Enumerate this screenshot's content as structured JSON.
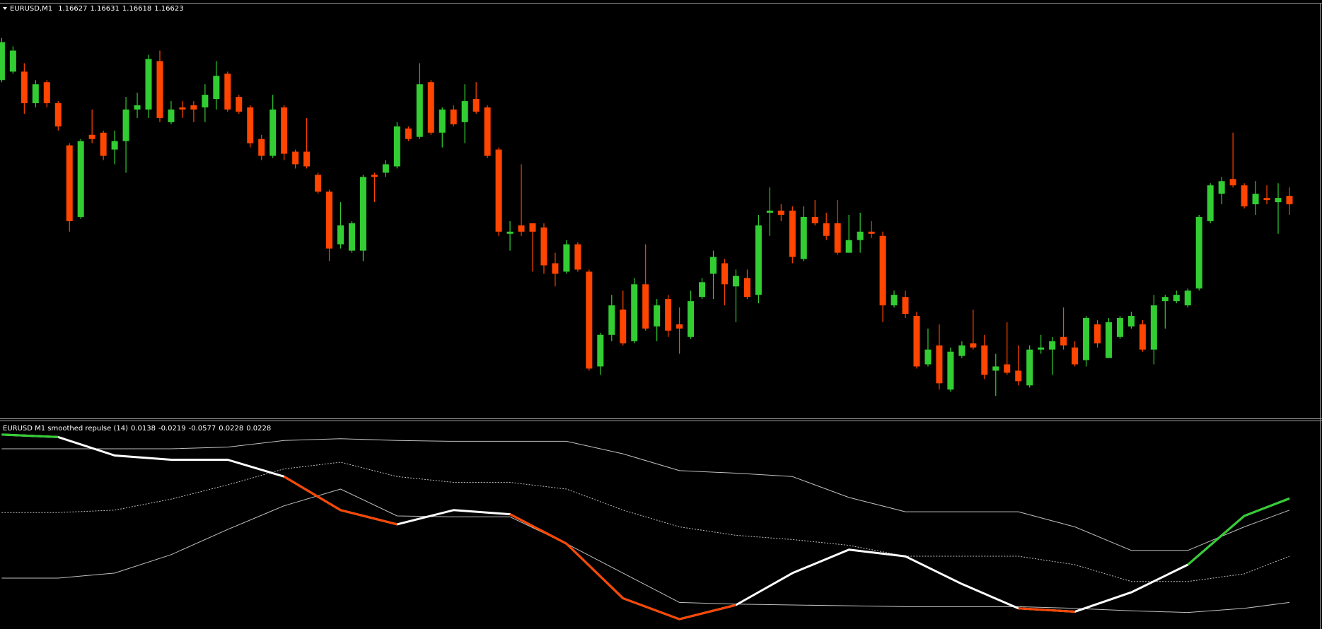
{
  "chart_data": [
    {
      "type": "candlestick",
      "title": "EURUSD,M1",
      "up_color": "#32cd32",
      "down_color": "#ff4500",
      "ylim": [
        1.16522,
        1.16718
      ],
      "open": [
        1.16682,
        1.16686,
        1.16686,
        1.16671,
        1.16681,
        1.16671,
        1.16651,
        1.16617,
        1.16656,
        1.16657,
        1.16649,
        1.16653,
        1.16668,
        1.16668,
        1.16691,
        1.16662,
        1.16669,
        1.1667,
        1.16669,
        1.16673,
        1.16685,
        1.16674,
        1.16669,
        1.16654,
        1.16646,
        1.16669,
        1.16648,
        1.16648,
        1.16637,
        1.16629,
        1.16604,
        1.16601,
        1.16601,
        1.16637,
        1.16638,
        1.16641,
        1.16659,
        1.16655,
        1.16681,
        1.16657,
        1.16668,
        1.16662,
        1.16673,
        1.16669,
        1.16649,
        1.16609,
        1.16613,
        1.16614,
        1.16612,
        1.16595,
        1.16591,
        1.16604,
        1.16591,
        1.16546,
        1.16561,
        1.16573,
        1.16558,
        1.16585,
        1.16565,
        1.16578,
        1.16566,
        1.1656,
        1.16579,
        1.1659,
        1.16595,
        1.16584,
        1.16588,
        1.1658,
        1.16619,
        1.1662,
        1.1662,
        1.16597,
        1.16617,
        1.16614,
        1.16614,
        1.166,
        1.16606,
        1.1661,
        1.16608,
        1.16575,
        1.16579,
        1.1657,
        1.16547,
        1.16556,
        1.16535,
        1.16551,
        1.16557,
        1.16556,
        1.16544,
        1.16547,
        1.16544,
        1.16537,
        1.16554,
        1.16554,
        1.1656,
        1.16555,
        1.16549,
        1.16566,
        1.1655,
        1.1656,
        1.16565,
        1.16566,
        1.16554,
        1.16577,
        1.16577,
        1.16575,
        1.16583,
        1.16615,
        1.16628,
        1.16635,
        1.16632,
        1.16623,
        1.16626,
        1.16624,
        1.16627
      ],
      "high": [
        1.16702,
        1.16698,
        1.1669,
        1.16682,
        1.16682,
        1.16672,
        1.16652,
        1.16654,
        1.16668,
        1.16658,
        1.16658,
        1.16674,
        1.16676,
        1.16694,
        1.16696,
        1.16672,
        1.16672,
        1.16672,
        1.1668,
        1.16691,
        1.16686,
        1.16675,
        1.1667,
        1.16656,
        1.16675,
        1.1667,
        1.16649,
        1.16664,
        1.16638,
        1.1663,
        1.16624,
        1.16615,
        1.16637,
        1.16638,
        1.16644,
        1.16662,
        1.1666,
        1.1669,
        1.16682,
        1.16669,
        1.1667,
        1.1668,
        1.16681,
        1.1667,
        1.1665,
        1.16615,
        1.16642,
        1.16614,
        1.16614,
        1.166,
        1.16606,
        1.16605,
        1.16592,
        1.16562,
        1.1658,
        1.16582,
        1.16588,
        1.16604,
        1.16578,
        1.1658,
        1.16574,
        1.16582,
        1.16588,
        1.16601,
        1.16597,
        1.16592,
        1.16592,
        1.16618,
        1.16631,
        1.16623,
        1.16622,
        1.16622,
        1.16625,
        1.16619,
        1.16625,
        1.16618,
        1.16619,
        1.16615,
        1.1661,
        1.16582,
        1.16582,
        1.16572,
        1.16564,
        1.16566,
        1.16555,
        1.16558,
        1.16573,
        1.16561,
        1.16552,
        1.16567,
        1.16556,
        1.16556,
        1.16561,
        1.1656,
        1.16574,
        1.16558,
        1.1657,
        1.16568,
        1.16569,
        1.1657,
        1.16572,
        1.16568,
        1.1658,
        1.1658,
        1.16582,
        1.16583,
        1.16618,
        1.16633,
        1.16636,
        1.16657,
        1.16633,
        1.16634,
        1.16632,
        1.16633,
        1.16631
      ],
      "low": [
        1.16681,
        1.16685,
        1.16666,
        1.16669,
        1.16669,
        1.16658,
        1.1661,
        1.16616,
        1.16652,
        1.16644,
        1.16642,
        1.16638,
        1.16664,
        1.16664,
        1.16662,
        1.16661,
        1.16664,
        1.16662,
        1.16662,
        1.16668,
        1.16667,
        1.16666,
        1.1665,
        1.16644,
        1.16645,
        1.16644,
        1.1664,
        1.1664,
        1.16628,
        1.16596,
        1.16602,
        1.166,
        1.16596,
        1.16624,
        1.16636,
        1.1664,
        1.16653,
        1.16654,
        1.16656,
        1.1665,
        1.1666,
        1.16652,
        1.16666,
        1.16645,
        1.16608,
        1.16601,
        1.16608,
        1.16591,
        1.1659,
        1.16584,
        1.1659,
        1.16591,
        1.16544,
        1.16542,
        1.16558,
        1.16556,
        1.16557,
        1.16563,
        1.16558,
        1.1656,
        1.16552,
        1.16559,
        1.16578,
        1.16578,
        1.16575,
        1.16567,
        1.16578,
        1.16576,
        1.16608,
        1.16615,
        1.16595,
        1.16596,
        1.16613,
        1.16606,
        1.16599,
        1.166,
        1.166,
        1.16607,
        1.16567,
        1.16574,
        1.16569,
        1.16545,
        1.16546,
        1.16535,
        1.16534,
        1.1655,
        1.16554,
        1.1654,
        1.16532,
        1.16542,
        1.16537,
        1.16536,
        1.16552,
        1.16542,
        1.16554,
        1.16546,
        1.16546,
        1.16555,
        1.1655,
        1.16559,
        1.16564,
        1.16553,
        1.16547,
        1.16564,
        1.16576,
        1.16574,
        1.16582,
        1.16614,
        1.16623,
        1.16631,
        1.16621,
        1.16618,
        1.16623,
        1.16609,
        1.16618
      ],
      "close": [
        1.167,
        1.16696,
        1.16671,
        1.1668,
        1.16671,
        1.1666,
        1.16615,
        1.16653,
        1.16654,
        1.16646,
        1.16653,
        1.16668,
        1.1667,
        1.16692,
        1.16664,
        1.16668,
        1.16668,
        1.16668,
        1.16675,
        1.16684,
        1.16668,
        1.16667,
        1.16652,
        1.16646,
        1.16668,
        1.16647,
        1.16642,
        1.16641,
        1.16629,
        1.16602,
        1.16613,
        1.16614,
        1.16636,
        1.16636,
        1.16642,
        1.1666,
        1.16654,
        1.1668,
        1.16657,
        1.16668,
        1.16661,
        1.16672,
        1.16667,
        1.16646,
        1.1661,
        1.1661,
        1.1661,
        1.1661,
        1.16594,
        1.1659,
        1.16604,
        1.16592,
        1.16545,
        1.16561,
        1.16575,
        1.16557,
        1.16585,
        1.16564,
        1.16575,
        1.16563,
        1.16564,
        1.16577,
        1.16586,
        1.16598,
        1.16585,
        1.16589,
        1.16579,
        1.16613,
        1.1662,
        1.16618,
        1.16598,
        1.16617,
        1.16614,
        1.16608,
        1.166,
        1.16606,
        1.1661,
        1.16609,
        1.16575,
        1.1658,
        1.16571,
        1.16546,
        1.16554,
        1.16538,
        1.16553,
        1.16556,
        1.16555,
        1.16542,
        1.16546,
        1.16543,
        1.16539,
        1.16554,
        1.16555,
        1.16558,
        1.16556,
        1.16547,
        1.16569,
        1.16557,
        1.16567,
        1.16569,
        1.1657,
        1.16554,
        1.16575,
        1.16579,
        1.1658,
        1.16582,
        1.16617,
        1.16632,
        1.16634,
        1.16632,
        1.16622,
        1.16628,
        1.16625,
        1.16626,
        1.16623
      ]
    },
    {
      "type": "line",
      "title": "EURUSD M1 smoothed repulse (14)",
      "ylim": [
        -0.0772,
        0.0821
      ],
      "x": [
        0,
        5,
        10,
        15,
        20,
        25,
        30,
        35,
        40,
        45,
        50,
        55,
        60,
        65,
        70,
        75,
        80,
        85,
        90,
        95,
        100,
        105,
        110,
        114
      ],
      "series": [
        {
          "color": "#c0c0c0",
          "values": [
            0.0613,
            0.0613,
            0.0613,
            0.0613,
            0.0626,
            0.0677,
            0.0691,
            0.0677,
            0.0671,
            0.0671,
            0.0671,
            0.0574,
            0.0444,
            0.0424,
            0.0398,
            0.0236,
            0.0125,
            0.0125,
            0.0125,
            0.0008,
            -0.0174,
            -0.0174,
            0.0008,
            0.0138
          ]
        },
        {
          "color": "#c0c0c0",
          "line_style": "dotted",
          "values": [
            0.0119,
            0.0119,
            0.0138,
            0.0223,
            0.0333,
            0.0457,
            0.0509,
            0.0398,
            0.0353,
            0.0353,
            0.0301,
            0.0138,
            0.0008,
            -0.0057,
            -0.009,
            -0.0135,
            -0.0219,
            -0.0219,
            -0.0219,
            -0.0285,
            -0.0415,
            -0.0415,
            -0.0356,
            -0.0219
          ]
        },
        {
          "color": "#c0c0c0",
          "values": [
            -0.0389,
            -0.0389,
            -0.035,
            -0.0207,
            -0.0012,
            0.0171,
            0.0301,
            0.0093,
            0.0086,
            0.0086,
            -0.0122,
            -0.035,
            -0.0577,
            -0.059,
            -0.0597,
            -0.0603,
            -0.061,
            -0.061,
            -0.061,
            -0.0623,
            -0.0642,
            -0.0655,
            -0.0623,
            -0.0577
          ]
        },
        {
          "color": "#ffffff",
          "values": [
            0.0723,
            0.0704,
            0.0561,
            0.0528,
            0.0528,
            0.0398,
            0.0138,
            0.0028,
            0.0138,
            0.0106,
            -0.0122,
            -0.0545,
            -0.0707,
            -0.0597,
            -0.035,
            -0.0168,
            -0.022,
            -0.0434,
            -0.0623,
            -0.0649,
            -0.0499,
            -0.0285,
            0.0093,
            0.0228
          ]
        },
        {
          "color": "#32cd32",
          "values": [
            0.0723,
            0.0704,
            null,
            null,
            null,
            null,
            null,
            null,
            null,
            null,
            null,
            null,
            null,
            null,
            null,
            null,
            null,
            null,
            null,
            null,
            null,
            -0.0285,
            0.0093,
            0.0228
          ]
        },
        {
          "color": "#ff4500",
          "values": [
            null,
            null,
            null,
            null,
            null,
            0.0398,
            0.0138,
            0.0028,
            null,
            0.0106,
            -0.0122,
            -0.0545,
            -0.0707,
            -0.0597,
            null,
            null,
            null,
            null,
            -0.0623,
            -0.0649,
            null,
            null,
            null,
            null
          ]
        }
      ]
    }
  ]
}
